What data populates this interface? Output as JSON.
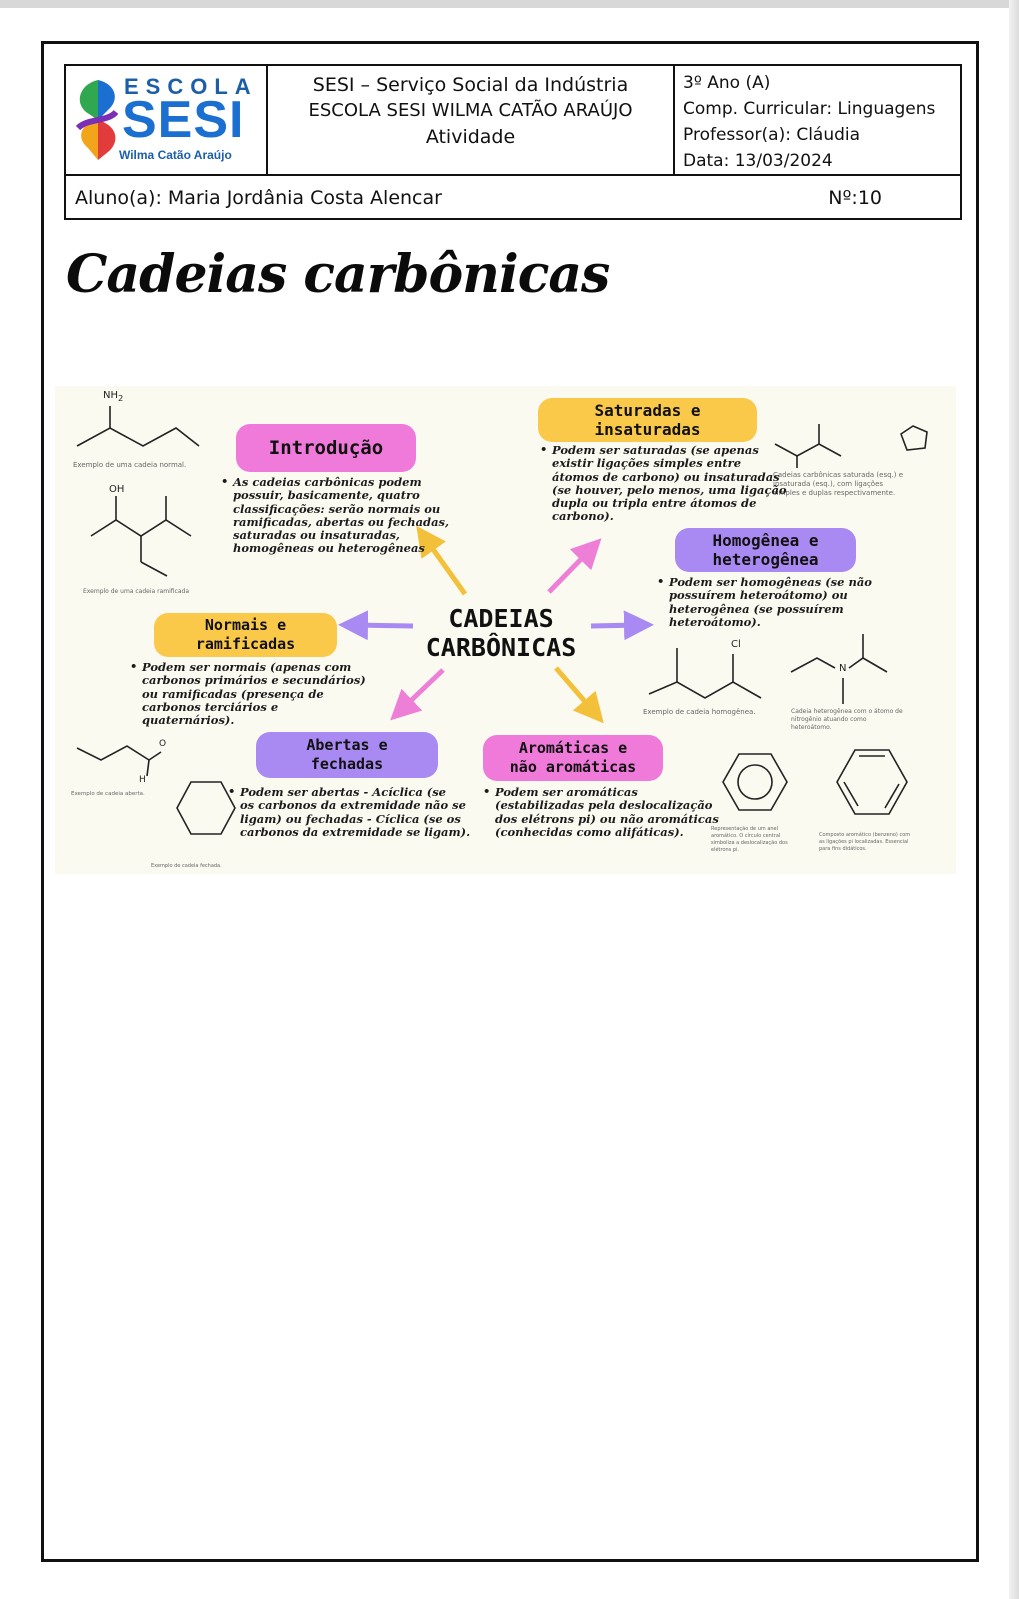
{
  "header": {
    "logo": {
      "line1": "ESCOLA",
      "line2": "SESI",
      "line3": "Wilma Catão Araújo"
    },
    "institution": "SESI – Serviço Social da Indústria",
    "school": "ESCOLA SESI WILMA CATÃO ARAÚJO",
    "doc_type": "Atividade",
    "grade": "3º Ano (A)",
    "subject": "Comp. Curricular: Linguagens",
    "teacher": "Professor(a): Cláudia",
    "date": "Data: 13/03/2024",
    "student": "Aluno(a): Maria Jordânia Costa Alencar",
    "number": "Nº:10"
  },
  "title": "Cadeias carbônicas",
  "infographic": {
    "center": {
      "line1": "CADEIAS",
      "line2": "CARBÔNICAS"
    },
    "introducao": {
      "label": "Introdução",
      "text": [
        "As cadeias carbônicas podem",
        "possuir, basicamente, quatro",
        "classificações: serão normais ou",
        "ramificadas, abertas ou fechadas,",
        "saturadas ou insaturadas,",
        "homogêneas ou heterogêneas"
      ]
    },
    "saturadas": {
      "label1": "Saturadas e",
      "label2": "insaturadas",
      "text": [
        "Podem ser saturadas (se apenas",
        "existir ligações simples entre",
        "átomos de carbono) ou insaturadas",
        "(se houver, pelo menos, uma ligação",
        "dupla ou tripla entre átomos de",
        "carbono)."
      ]
    },
    "homogenea": {
      "label1": "Homogênea e",
      "label2": "heterogênea",
      "text": [
        "Podem ser homogêneas (se não",
        "possuírem heteroátomo) ou",
        "heterogênea (se possuírem",
        "heteroátomo)."
      ]
    },
    "normais": {
      "label1": "Normais e",
      "label2": "ramificadas",
      "text": [
        "Podem ser normais (apenas com",
        "carbonos primários e secundários)",
        "ou ramificadas (presença de",
        "carbonos terciários e",
        "quaternários)."
      ]
    },
    "abertas": {
      "label1": "Abertas e",
      "label2": "fechadas",
      "text": [
        "Podem ser abertas - Acíclica (se",
        "os carbonos da extremidade não se",
        "ligam) ou fechadas - Cíclica (se os",
        "carbonos da extremidade se ligam)."
      ]
    },
    "aromaticas": {
      "label1": "Aromáticas e",
      "label2": "não aromáticas",
      "text": [
        "Podem ser aromáticas",
        "(estabilizadas pela deslocalização",
        "dos elétrons pi) ou não aromáticas",
        "(conhecidas como alifáticas)."
      ]
    },
    "atoms": {
      "nh2": "NH",
      "nh2_sub": "2",
      "oh": "OH",
      "cl": "Cl",
      "n": "N",
      "o": "O",
      "h": "H"
    },
    "captions": {
      "normal": "Exemplo de uma cadeia normal.",
      "ramificada": "Exemplo de uma cadeia ramificada",
      "saturada": [
        "Cadeias carbônicas saturada (esq.) e",
        "insaturada (esq.), com ligações",
        "simples e duplas respectivamente."
      ],
      "homogenea": "Exemplo de cadeia homogênea.",
      "heterogenea": [
        "Cadeia heterogênea com o átomo de",
        "nitrogênio atuando como",
        "heteroátomo."
      ],
      "aberta": "Exemplo de cadeia aberta.",
      "fechada": "Exemplo de cadeia fechada.",
      "anel": [
        "Representação de um anel",
        "aromático. O círculo central",
        "simboliza a deslocalização dos",
        "elétrons pi."
      ],
      "benzeno": [
        "Composto aromático (benzeno) com",
        "as ligações pi localizadas. Essencial",
        "para fins didáticos."
      ]
    }
  },
  "colors": {
    "pink": "#f07ad9",
    "yellow": "#fac94a",
    "purple": "#a98af2",
    "logo_blue": "#1b6fd1"
  }
}
